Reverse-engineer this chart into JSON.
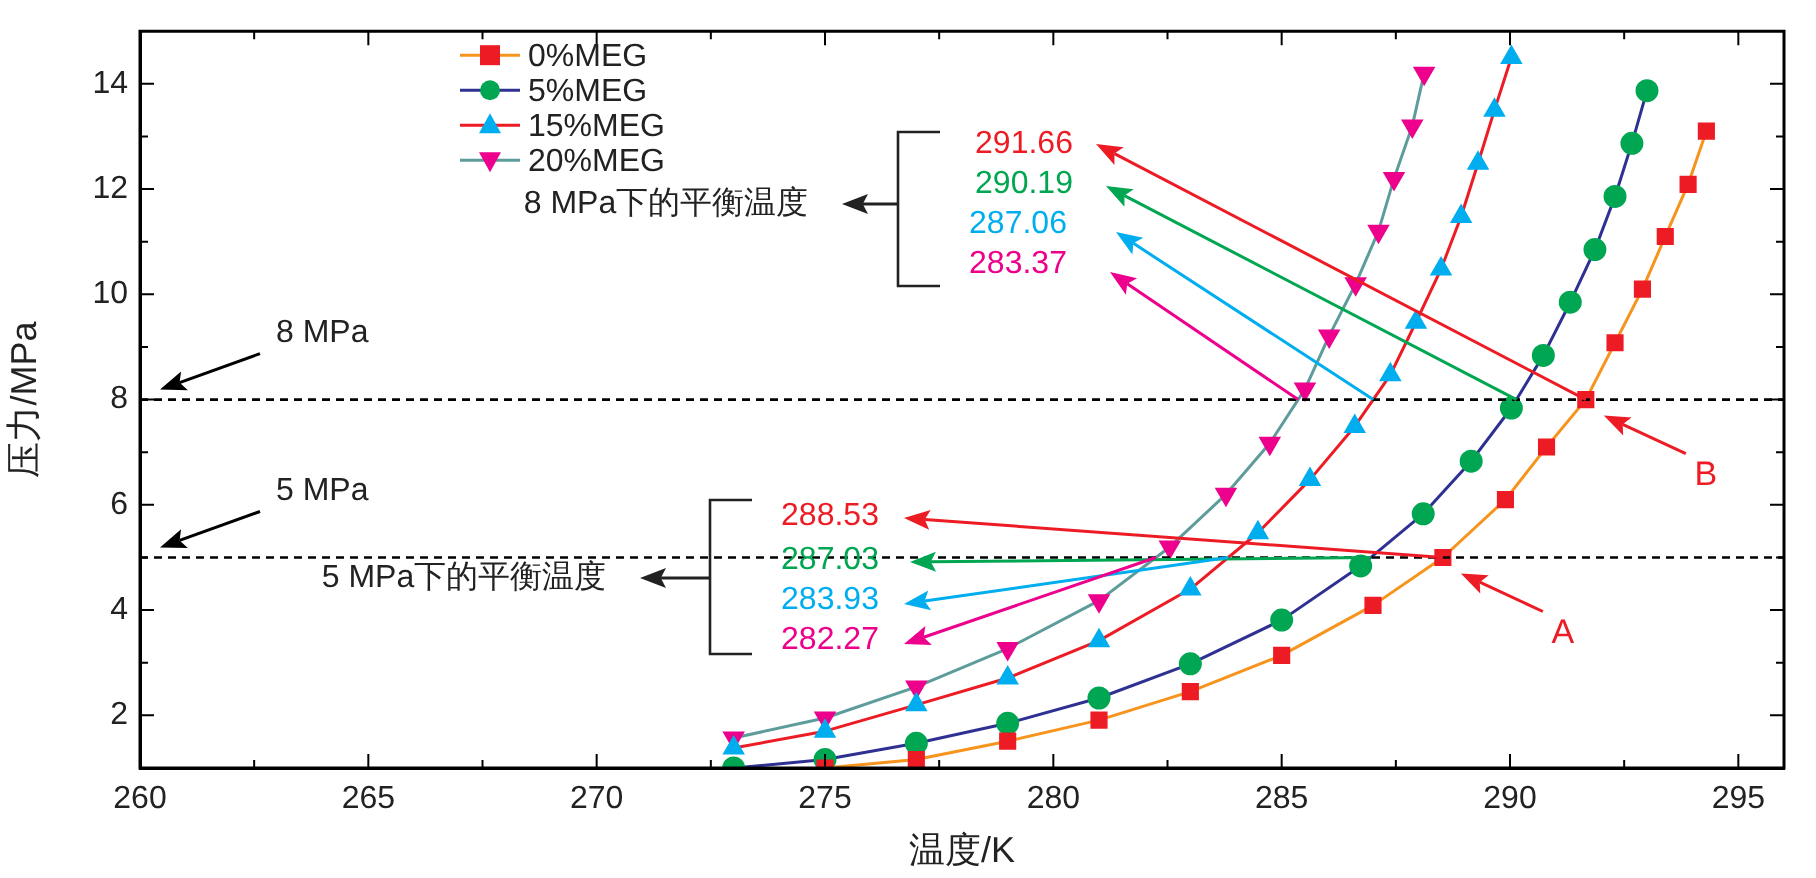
{
  "chart_data": {
    "type": "line",
    "xlabel": "温度/K",
    "ylabel": "压力/MPa",
    "xlim": [
      260,
      296
    ],
    "ylim": [
      1,
      15
    ],
    "xticks": [
      260,
      {
        "value": 262.5,
        "label": null
      },
      265,
      {
        "value": 267.5,
        "label": null
      },
      270,
      {
        "value": 272.5,
        "label": null
      },
      275,
      {
        "value": 277.5,
        "label": null
      },
      280,
      {
        "value": 282.5,
        "label": null
      },
      285,
      {
        "value": 287.5,
        "label": null
      },
      290,
      {
        "value": 292.5,
        "label": null
      },
      295
    ],
    "yticks": [
      2,
      {
        "value": 3,
        "label": null
      },
      4,
      {
        "value": 5,
        "label": null
      },
      6,
      {
        "value": 7,
        "label": null
      },
      8,
      {
        "value": 9,
        "label": null
      },
      10,
      {
        "value": 11,
        "label": null
      },
      12,
      {
        "value": 13,
        "label": null
      },
      14
    ],
    "grid": false,
    "legend": "top left",
    "line_style": "solid",
    "series": [
      {
        "name": "0%MEG",
        "color": "#f7941d",
        "marker": "square",
        "x": [
          275,
          277,
          279,
          281,
          283,
          285,
          287,
          288.53,
          289.9,
          290.8,
          291.66,
          292.3,
          292.9,
          293.4,
          293.9,
          294.3
        ],
        "values": [
          1,
          1.16,
          1.51,
          1.91,
          2.45,
          3.14,
          4.09,
          5,
          6.1,
          7.1,
          8,
          9.08,
          10.1,
          11.1,
          12.09,
          13.1
        ],
        "colors": [
          "#ed1c24",
          "#ed1c24",
          "#ed1c24",
          "#ed1c24",
          "#ed1c24",
          "#ed1c24",
          "#ed1c24",
          "#ed1c24",
          "#ed1c24",
          "#ed1c24",
          "#ed1c24",
          "#ed1c24",
          "#ed1c24",
          "#ed1c24",
          "#ed1c24",
          "#ed1c24"
        ]
      },
      {
        "name": "5%MEG",
        "color": "#2e3192",
        "marker": "circle",
        "x": [
          273,
          275,
          277,
          279,
          281,
          283,
          285,
          286.73,
          288.1,
          289.15,
          290.03,
          290.73,
          291.32,
          291.86,
          292.3,
          292.67,
          293
        ],
        "values": [
          1,
          1.16,
          1.47,
          1.85,
          2.33,
          2.98,
          3.81,
          4.84,
          5.83,
          6.83,
          7.84,
          8.84,
          9.85,
          10.85,
          11.86,
          12.87,
          13.87
        ],
        "colors": [
          "#00a651",
          "#00a651",
          "#00a651",
          "#00a651",
          "#00a651",
          "#00a651",
          "#00a651",
          "#00a651",
          "#00a651",
          "#00a651",
          "#00a651",
          "#00a651",
          "#00a651",
          "#00a651",
          "#00a651",
          "#00a651",
          "#00a651"
        ]
      },
      {
        "name": "15%MEG",
        "color": "#ed1c24",
        "marker": "triangle",
        "x": [
          273,
          275,
          277,
          279,
          281,
          283,
          284.48,
          285.62,
          286.6,
          287.38,
          287.94,
          288.49,
          288.93,
          289.3,
          289.66,
          290.03
        ],
        "values": [
          1.38,
          1.7,
          2.2,
          2.71,
          3.42,
          4.4,
          5.47,
          6.48,
          7.49,
          8.47,
          9.47,
          10.48,
          11.48,
          12.49,
          13.5,
          14.5
        ],
        "colors": [
          "#00aeef",
          "#00aeef",
          "#00aeef",
          "#00aeef",
          "#00aeef",
          "#00aeef",
          "#00aeef",
          "#00aeef",
          "#00aeef",
          "#00aeef",
          "#00aeef",
          "#00aeef",
          "#00aeef",
          "#00aeef",
          "#00aeef",
          "#00aeef"
        ]
      },
      {
        "name": "20%MEG",
        "color": "#5e9c9c",
        "marker": "triangle-down",
        "x": [
          273,
          275,
          277,
          279,
          281,
          282.55,
          283.78,
          284.74,
          285.51,
          286.04,
          286.62,
          287.12,
          287.46,
          287.86,
          288.12
        ],
        "values": [
          1.57,
          1.95,
          2.54,
          3.27,
          4.18,
          5.2,
          6.2,
          7.17,
          8.2,
          9.21,
          10.2,
          11.2,
          12.2,
          13.2,
          14.2
        ],
        "colors": [
          "#ec008c",
          "#ec008c",
          "#ec008c",
          "#ec008c",
          "#ec008c",
          "#ec008c",
          "#ec008c",
          "#ec008c",
          "#ec008c",
          "#ec008c",
          "#ec008c",
          "#ec008c",
          "#ec008c",
          "#ec008c",
          "#ec008c"
        ]
      }
    ],
    "ref_lines": [
      {
        "axis": "y",
        "value": 8,
        "label": "8 MPa",
        "line_style": "dashed",
        "color": "#000000"
      },
      {
        "axis": "y",
        "value": 5,
        "label": "5 MPa",
        "line_style": "dashed",
        "color": "#000000"
      }
    ],
    "annotations": [
      "8 MPa下的平衡温度",
      "291.66",
      "290.19",
      "287.06",
      "283.37",
      "5 MPa下的平衡温度",
      "288.53",
      "287.03",
      "283.93",
      "282.27",
      "A",
      "B"
    ]
  }
}
